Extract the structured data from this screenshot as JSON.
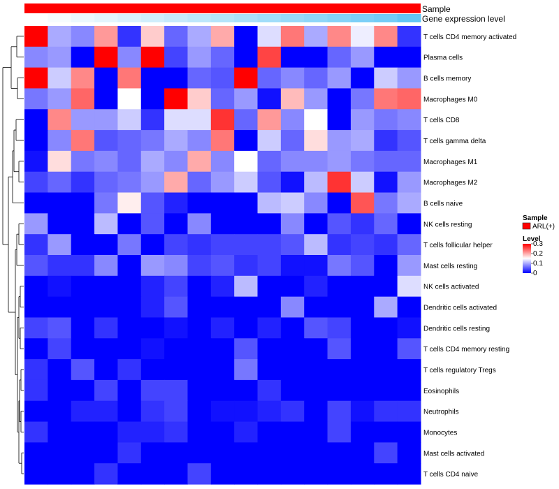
{
  "chart_data": {
    "type": "heatmap",
    "annotation_tracks": [
      {
        "name": "Sample",
        "color": "#ff0000"
      },
      {
        "name": "Gene expression level",
        "colors_low_to_high": [
          "#ffffff",
          "#63c6f5"
        ]
      }
    ],
    "rows": [
      "T cells CD4 memory activated",
      "Plasma cells",
      "B cells memory",
      "Macrophages M0",
      "T cells CD8",
      "T cells gamma delta",
      "Macrophages M1",
      "Macrophages M2",
      "B cells naive",
      "NK cells resting",
      "T cells follicular helper",
      "Mast cells resting",
      "NK cells activated",
      "Dendritic cells activated",
      "Dendritic cells resting",
      "T cells CD4 memory resting",
      "T cells regulatory  Tregs",
      "Eosinophils",
      "Neutrophils",
      "Monocytes",
      "Mast cells activated",
      "T cells CD4 naive"
    ],
    "values": [
      [
        0.3,
        0.1,
        0.08,
        0.21,
        0.03,
        0.18,
        0.06,
        0.1,
        0.2,
        0.0,
        0.13,
        0.23,
        0.1,
        0.22,
        0.14,
        0.22,
        0.03
      ],
      [
        0.08,
        0.09,
        0.0,
        0.3,
        0.08,
        0.3,
        0.04,
        0.09,
        0.06,
        0.0,
        0.26,
        0.0,
        0.0,
        0.06,
        0.09,
        0.0,
        0.0
      ],
      [
        0.3,
        0.12,
        0.22,
        0.0,
        0.23,
        0.0,
        0.0,
        0.06,
        0.05,
        0.3,
        0.06,
        0.08,
        0.06,
        0.09,
        0.0,
        0.12,
        0.09
      ],
      [
        0.07,
        0.09,
        0.24,
        0.0,
        0.15,
        0.0,
        0.3,
        0.18,
        0.06,
        0.09,
        0.01,
        0.19,
        0.09,
        0.0,
        0.07,
        0.23,
        0.24
      ],
      [
        0.0,
        0.22,
        0.09,
        0.09,
        0.12,
        0.03,
        0.13,
        0.13,
        0.27,
        0.06,
        0.21,
        0.08,
        0.15,
        0.0,
        0.09,
        0.07,
        0.08
      ],
      [
        0.0,
        0.08,
        0.23,
        0.05,
        0.06,
        0.07,
        0.1,
        0.08,
        0.23,
        0.0,
        0.12,
        0.06,
        0.17,
        0.09,
        0.1,
        0.03,
        0.05
      ],
      [
        0.01,
        0.17,
        0.07,
        0.08,
        0.06,
        0.1,
        0.08,
        0.2,
        0.08,
        0.15,
        0.06,
        0.08,
        0.08,
        0.09,
        0.07,
        0.06,
        0.06
      ],
      [
        0.04,
        0.06,
        0.03,
        0.06,
        0.07,
        0.09,
        0.2,
        0.06,
        0.09,
        0.12,
        0.05,
        0.01,
        0.11,
        0.27,
        0.12,
        0.01,
        0.09
      ],
      [
        0.0,
        0.0,
        0.0,
        0.07,
        0.16,
        0.05,
        0.02,
        0.0,
        0.0,
        0.0,
        0.11,
        0.12,
        0.08,
        0.0,
        0.25,
        0.07,
        0.1
      ],
      [
        0.09,
        0.0,
        0.0,
        0.11,
        0.0,
        0.05,
        0.0,
        0.08,
        0.0,
        0.0,
        0.0,
        0.08,
        0.0,
        0.05,
        0.03,
        0.06,
        0.0
      ],
      [
        0.03,
        0.09,
        0.0,
        0.0,
        0.07,
        0.0,
        0.04,
        0.03,
        0.04,
        0.04,
        0.04,
        0.05,
        0.11,
        0.03,
        0.04,
        0.03,
        0.06
      ],
      [
        0.05,
        0.03,
        0.03,
        0.08,
        0.0,
        0.09,
        0.08,
        0.04,
        0.05,
        0.03,
        0.04,
        0.01,
        0.01,
        0.07,
        0.05,
        0.0,
        0.09
      ],
      [
        0.0,
        0.01,
        0.0,
        0.0,
        0.0,
        0.02,
        0.04,
        0.0,
        0.02,
        0.11,
        0.0,
        0.0,
        0.02,
        0.0,
        0.0,
        0.0,
        0.13
      ],
      [
        0.0,
        0.0,
        0.0,
        0.0,
        0.0,
        0.02,
        0.05,
        0.0,
        0.0,
        0.0,
        0.0,
        0.08,
        0.0,
        0.0,
        0.0,
        0.1,
        0.0
      ],
      [
        0.04,
        0.05,
        0.0,
        0.03,
        0.0,
        0.0,
        0.01,
        0.0,
        0.02,
        0.0,
        0.02,
        0.0,
        0.05,
        0.04,
        0.0,
        0.0,
        0.01
      ],
      [
        0.0,
        0.04,
        0.0,
        0.0,
        0.0,
        0.01,
        0.0,
        0.0,
        0.0,
        0.05,
        0.0,
        0.0,
        0.0,
        0.05,
        0.0,
        0.0,
        0.05
      ],
      [
        0.03,
        0.0,
        0.05,
        0.0,
        0.03,
        0.0,
        0.0,
        0.0,
        0.0,
        0.07,
        0.0,
        0.0,
        0.0,
        0.0,
        0.0,
        0.0,
        0.0
      ],
      [
        0.03,
        0.0,
        0.0,
        0.04,
        0.0,
        0.04,
        0.04,
        0.0,
        0.0,
        0.0,
        0.03,
        0.0,
        0.0,
        0.0,
        0.0,
        0.0,
        0.0
      ],
      [
        0.0,
        0.0,
        0.02,
        0.02,
        0.0,
        0.03,
        0.04,
        0.0,
        0.01,
        0.01,
        0.02,
        0.03,
        0.0,
        0.04,
        0.01,
        0.03,
        0.03
      ],
      [
        0.03,
        0.0,
        0.0,
        0.0,
        0.02,
        0.02,
        0.03,
        0.0,
        0.0,
        0.02,
        0.0,
        0.0,
        0.0,
        0.04,
        0.0,
        0.0,
        0.0
      ],
      [
        0.0,
        0.0,
        0.0,
        0.0,
        0.03,
        0.0,
        0.0,
        0.0,
        0.0,
        0.0,
        0.0,
        0.0,
        0.0,
        0.0,
        0.0,
        0.04,
        0.0
      ],
      [
        0.0,
        0.0,
        0.0,
        0.03,
        0.0,
        0.0,
        0.0,
        0.04,
        0.0,
        0.0,
        0.0,
        0.0,
        0.0,
        0.0,
        0.0,
        0.0,
        0.0
      ]
    ],
    "gene_expression_level": [
      0.0,
      0.06,
      0.12,
      0.18,
      0.24,
      0.3,
      0.36,
      0.42,
      0.48,
      0.54,
      0.6,
      0.66,
      0.72,
      0.78,
      0.84,
      0.9,
      1.0
    ],
    "legend": {
      "position": "right",
      "sample_title": "Sample",
      "sample_label": "ARL(+)",
      "sample_color": "#ff0000",
      "level_title": "Level",
      "level_ticks": [
        "0.3",
        "0.2",
        "0.1",
        "0"
      ],
      "level_tick_values": [
        0.3,
        0.2,
        0.1,
        0.0
      ]
    },
    "color_scale": {
      "low": "#0000ff",
      "mid": "#ffffff",
      "high": "#ff0000",
      "range": [
        0,
        0.3
      ],
      "mid_value": 0.15
    }
  }
}
